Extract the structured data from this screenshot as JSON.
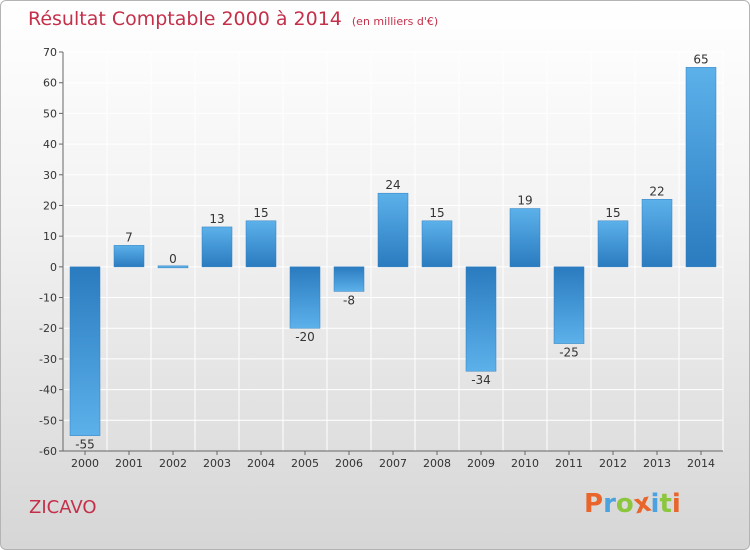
{
  "title": "Résultat Comptable 2000 à 2014",
  "unit_note": "(en milliers d'€)",
  "commune": "ZICAVO",
  "logo": {
    "text": "Proxiti",
    "letters": [
      {
        "ch": "P",
        "color": "#e8662c"
      },
      {
        "ch": "r",
        "color": "#4aa3df"
      },
      {
        "ch": "o",
        "color": "#8cc63f"
      },
      {
        "ch": "x",
        "color": "#e8662c"
      },
      {
        "ch": "i",
        "color": "#4aa3df"
      },
      {
        "ch": "t",
        "color": "#8cc63f"
      },
      {
        "ch": "i",
        "color": "#e8662c"
      }
    ]
  },
  "colors": {
    "title": "#c4304a",
    "bar_light": "#5cb1ea",
    "bar_dark": "#2a7bbf",
    "grid": "#ffffff"
  },
  "chart_data": {
    "type": "bar",
    "categories": [
      "2000",
      "2001",
      "2002",
      "2003",
      "2004",
      "2005",
      "2006",
      "2007",
      "2008",
      "2009",
      "2010",
      "2011",
      "2012",
      "2013",
      "2014"
    ],
    "values": [
      -55,
      7,
      0,
      13,
      15,
      -20,
      -8,
      24,
      15,
      -34,
      19,
      -25,
      15,
      22,
      65
    ],
    "ylim": [
      -60,
      70
    ],
    "yticks": [
      70,
      60,
      50,
      40,
      30,
      20,
      10,
      0,
      -10,
      -20,
      -30,
      -40,
      -50,
      -60
    ],
    "grid": true,
    "data_labels": true
  }
}
